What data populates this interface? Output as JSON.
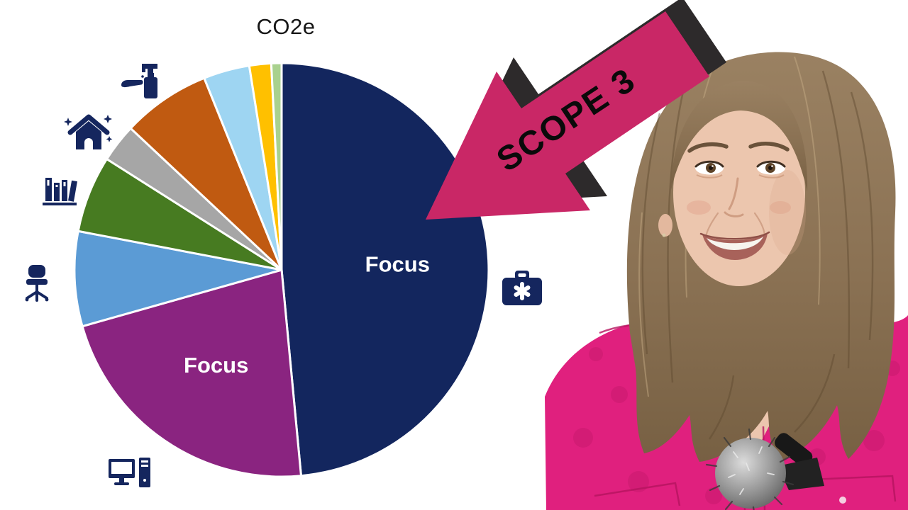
{
  "page": {
    "background": "#ffffff",
    "kind": "video-thumbnail with pie chart, overlay arrow and presenter"
  },
  "chart_data": {
    "type": "pie",
    "title": "CO2e",
    "value_units": "percent of circle (estimated from arc angles)",
    "start_angle_deg": 0,
    "direction": "clockwise",
    "legend_position": "none",
    "slice_border_color": "#ffffff",
    "segments": [
      {
        "label": "Focus",
        "value": 48.5,
        "color": "#13265E",
        "adjacent_icon": "first-aid-kit"
      },
      {
        "label": "Focus",
        "value": 22.1,
        "color": "#8A2480",
        "adjacent_icon": "desktop-computer"
      },
      {
        "label": "",
        "value": 7.4,
        "color": "#5B9BD5",
        "adjacent_icon": "office-chair"
      },
      {
        "label": "",
        "value": 6.0,
        "color": "#477B21",
        "adjacent_icon": "books"
      },
      {
        "label": "",
        "value": 3.0,
        "color": "#A6A6A6",
        "adjacent_icon": "house-sparkles"
      },
      {
        "label": "",
        "value": 6.9,
        "color": "#C05A11",
        "adjacent_icon": "hand-soap"
      },
      {
        "label": "",
        "value": 3.6,
        "color": "#9ED5F2",
        "adjacent_icon": ""
      },
      {
        "label": "",
        "value": 1.7,
        "color": "#FFC000",
        "adjacent_icon": ""
      },
      {
        "label": "",
        "value": 0.8,
        "color": "#A9D18E",
        "adjacent_icon": ""
      }
    ]
  },
  "icons": {
    "color": "#15265E",
    "items": [
      "hand-soap",
      "house-sparkles",
      "books",
      "office-chair",
      "desktop-computer",
      "first-aid-kit"
    ]
  },
  "arrow": {
    "label": "SCOPE 3",
    "fill": "#C92766",
    "shadow": "#2D2A2B",
    "text_color": "#0a0a0a"
  },
  "portrait": {
    "description": "woman presenter, shoulder-length brown hair, pink shirt, furry lavalier microphone",
    "shirt_color": "#E0207E",
    "hair_color": "#8C7156",
    "skin_color": "#ECC6AE",
    "mic_color": "#8f8f8f"
  }
}
